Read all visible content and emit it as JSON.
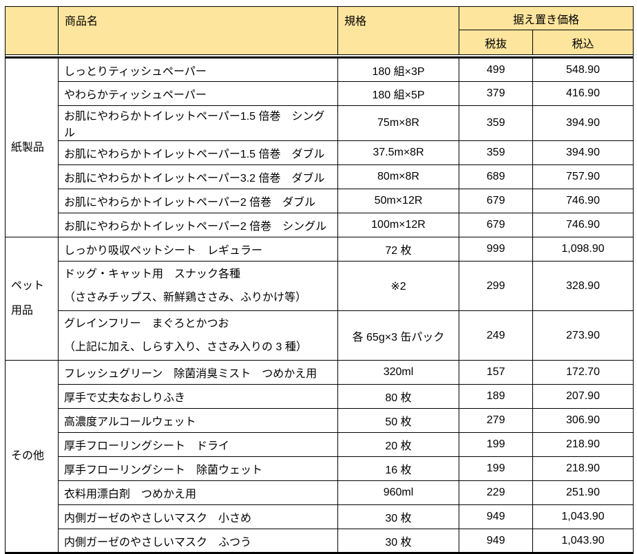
{
  "colors": {
    "header_bg": "#FDE59D",
    "border": "#000000",
    "text": "#000000"
  },
  "table": {
    "header": {
      "category": "",
      "product": "商品名",
      "spec": "規格",
      "price_group": "据え置き価格",
      "tax_excluded": "税抜",
      "tax_included": "税込"
    },
    "sections": [
      {
        "category": "紙製品",
        "rows": [
          {
            "product": "しっとりティッシュペーパー",
            "spec": "180 組×3P",
            "ex": "499",
            "inc": "548.90"
          },
          {
            "product": "やわらかティッシュペーパー",
            "spec": "180 組×5P",
            "ex": "379",
            "inc": "416.90"
          },
          {
            "product": "お肌にやわらかトイレットペーパー1.5 倍巻　シングル",
            "spec": "75m×8R",
            "ex": "359",
            "inc": "394.90"
          },
          {
            "product": "お肌にやわらかトイレットペーパー1.5 倍巻　ダブル",
            "spec": "37.5m×8R",
            "ex": "359",
            "inc": "394.90"
          },
          {
            "product": "お肌にやわらかトイレットペーパー3.2 倍巻　ダブル",
            "spec": "80m×8R",
            "ex": "689",
            "inc": "757.90"
          },
          {
            "product": "お肌にやわらかトイレットペーパー2 倍巻　ダブル",
            "spec": "50m×12R",
            "ex": "679",
            "inc": "746.90"
          },
          {
            "product": "お肌にやわらかトイレットペーパー2 倍巻　シングル",
            "spec": "100m×12R",
            "ex": "679",
            "inc": "746.90"
          }
        ]
      },
      {
        "category": "ペット\n用品",
        "rows": [
          {
            "product": "しっかり吸収ペットシート　レギュラー",
            "spec": "72 枚",
            "ex": "999",
            "inc": "1,098.90"
          },
          {
            "product": "ドッグ・キャット用　スナック各種\n （ささみチップス、新鮮鶏ささみ、ふりかけ等）",
            "spec": "※2",
            "ex": "299",
            "inc": "328.90",
            "tall": true
          },
          {
            "product": "グレインフリー　まぐろとかつお\n （上記に加え、しらす入り、ささみ入りの 3 種）",
            "spec": "各 65g×3 缶パック",
            "ex": "249",
            "inc": "273.90",
            "tall": true
          }
        ]
      },
      {
        "category": "その他",
        "rows": [
          {
            "product": "フレッシュグリーン　除菌消臭ミスト　つめかえ用",
            "spec": "320ml",
            "ex": "157",
            "inc": "172.70"
          },
          {
            "product": "厚手で丈夫なおしりふき",
            "spec": "80 枚",
            "ex": "189",
            "inc": "207.90"
          },
          {
            "product": "高濃度アルコールウェット",
            "spec": "50 枚",
            "ex": "279",
            "inc": "306.90"
          },
          {
            "product": "厚手フローリングシート　ドライ",
            "spec": "20 枚",
            "ex": "199",
            "inc": "218.90"
          },
          {
            "product": "厚手フローリングシート　除菌ウェット",
            "spec": "16 枚",
            "ex": "199",
            "inc": "218.90"
          },
          {
            "product": "衣料用漂白剤　つめかえ用",
            "spec": "960ml",
            "ex": "229",
            "inc": "251.90"
          },
          {
            "product": "内側ガーゼのやさしいマスク　小さめ",
            "spec": "30 枚",
            "ex": "949",
            "inc": "1,043.90"
          },
          {
            "product": "内側ガーゼのやさしいマスク　ふつう",
            "spec": "30 枚",
            "ex": "949",
            "inc": "1,043.90"
          }
        ]
      }
    ]
  }
}
